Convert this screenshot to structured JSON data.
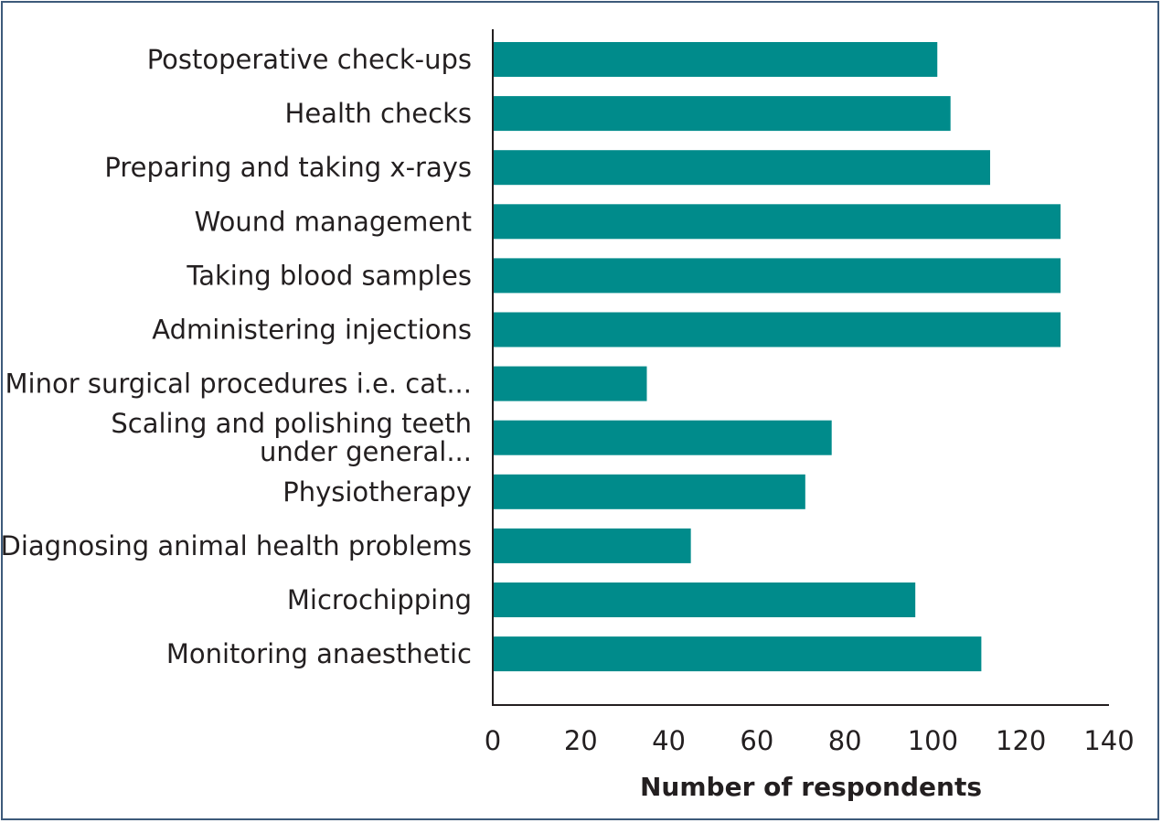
{
  "chart_data": {
    "type": "bar",
    "orientation": "horizontal",
    "categories": [
      [
        "Postoperative check-ups"
      ],
      [
        "Health checks"
      ],
      [
        "Preparing and taking x-rays"
      ],
      [
        "Wound management"
      ],
      [
        "Taking blood samples"
      ],
      [
        "Administering injections"
      ],
      [
        "Minor surgical procedures i.e. cat..."
      ],
      [
        "Scaling and polishing teeth",
        "under general..."
      ],
      [
        "Physiotherapy"
      ],
      [
        "Diagnosing animal health problems"
      ],
      [
        "Microchipping"
      ],
      [
        "Monitoring anaesthetic"
      ]
    ],
    "values": [
      101,
      104,
      113,
      129,
      129,
      129,
      35,
      77,
      71,
      45,
      96,
      111
    ],
    "xlabel": "Number of respondents",
    "ylabel": "",
    "title": "",
    "xlim": [
      0,
      140
    ],
    "xticks": [
      "0",
      "20",
      "40",
      "60",
      "80",
      "100",
      "120",
      "140"
    ],
    "bar_color": "#008b8b",
    "grid": false,
    "legend": "none"
  }
}
